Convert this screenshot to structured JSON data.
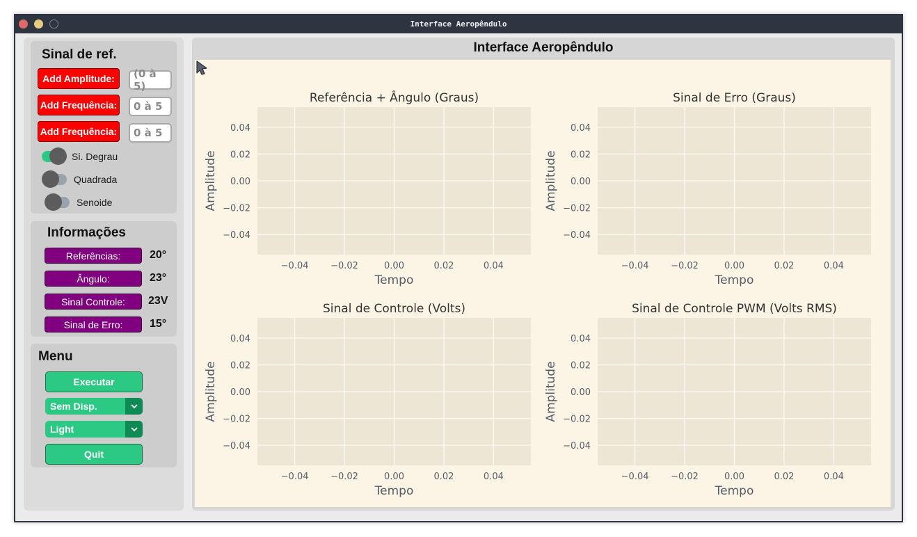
{
  "window": {
    "title": "Interface Aeropêndulo"
  },
  "sidebar": {
    "reference": {
      "title": "Sinal de ref.",
      "buttons": [
        {
          "label": "Add Amplitude:",
          "input_value": "(0 à 5)"
        },
        {
          "label": "Add Frequência:",
          "input_value": "0 à 5"
        },
        {
          "label": "Add Frequência:",
          "input_value": "0 à 5"
        }
      ],
      "switches": [
        {
          "label": "Si. Degrau",
          "on": true
        },
        {
          "label": "Quadrada",
          "on": false
        },
        {
          "label": "Senoide",
          "on": false
        }
      ]
    },
    "info": {
      "title": "Informações",
      "rows": [
        {
          "label": "Referências:",
          "value": "20°"
        },
        {
          "label": "Ângulo:",
          "value": "23°"
        },
        {
          "label": "Sinal Controle:",
          "value": "23V"
        },
        {
          "label": "Sinal de Erro:",
          "value": "15°"
        }
      ]
    },
    "menu": {
      "title": "Menu",
      "run_label": "Executar",
      "device_select": "Sem Disp.",
      "theme_select": "Light",
      "quit_label": "Quit"
    }
  },
  "main": {
    "title": "Interface Aeropêndulo"
  },
  "colors": {
    "plot_face": "#ede6d5",
    "plot_bg": "#fcf5e5",
    "grid": "#fbfaf4",
    "tick_text": "#555c68",
    "red_button": "#ff0000",
    "purple_tag": "#800080",
    "green_button": "#2cc985"
  },
  "icons": {
    "cursor": "pointer-arrow-icon"
  },
  "chart_data": [
    {
      "type": "line",
      "title": "Referência + Ângulo (Graus)",
      "xlabel": "Tempo",
      "ylabel": "Amplitude",
      "xlim": [
        -0.055,
        0.055
      ],
      "ylim": [
        -0.055,
        0.055
      ],
      "xticks": [
        "−0.04",
        "−0.02",
        "0.00",
        "0.02",
        "0.04"
      ],
      "yticks": [
        "0.04",
        "0.02",
        "0.00",
        "−0.02",
        "−0.04"
      ],
      "grid": true,
      "series": []
    },
    {
      "type": "line",
      "title": "Sinal de Erro (Graus)",
      "xlabel": "Tempo",
      "ylabel": "Amplitude",
      "xlim": [
        -0.055,
        0.055
      ],
      "ylim": [
        -0.055,
        0.055
      ],
      "xticks": [
        "−0.04",
        "−0.02",
        "0.00",
        "0.02",
        "0.04"
      ],
      "yticks": [
        "0.04",
        "0.02",
        "0.00",
        "−0.02",
        "−0.04"
      ],
      "grid": true,
      "series": []
    },
    {
      "type": "line",
      "title": "Sinal de Controle (Volts)",
      "xlabel": "Tempo",
      "ylabel": "Amplitude",
      "xlim": [
        -0.055,
        0.055
      ],
      "ylim": [
        -0.055,
        0.055
      ],
      "xticks": [
        "−0.04",
        "−0.02",
        "0.00",
        "0.02",
        "0.04"
      ],
      "yticks": [
        "0.04",
        "0.02",
        "0.00",
        "−0.02",
        "−0.04"
      ],
      "grid": true,
      "series": []
    },
    {
      "type": "line",
      "title": "Sinal de Controle PWM (Volts RMS)",
      "xlabel": "Tempo",
      "ylabel": "Amplitude",
      "xlim": [
        -0.055,
        0.055
      ],
      "ylim": [
        -0.055,
        0.055
      ],
      "xticks": [
        "−0.04",
        "−0.02",
        "0.00",
        "0.02",
        "0.04"
      ],
      "yticks": [
        "0.04",
        "0.02",
        "0.00",
        "−0.02",
        "−0.04"
      ],
      "grid": true,
      "series": []
    }
  ]
}
